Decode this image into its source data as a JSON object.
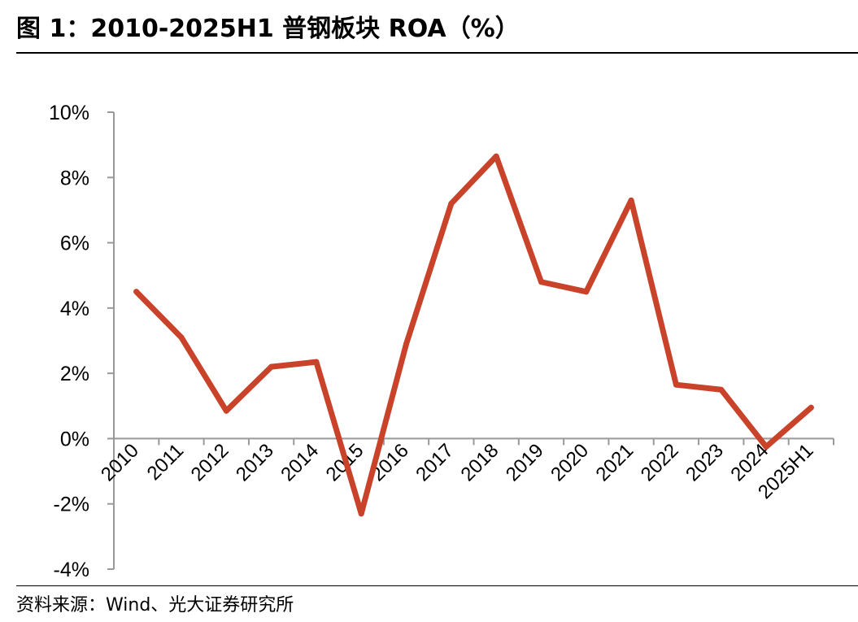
{
  "header": {
    "title": "图 1：2010-2025H1 普钢板块 ROA（%）"
  },
  "footer": {
    "source": "资料来源：Wind、光大证券研究所"
  },
  "chart_data": {
    "type": "line",
    "title": "图 1：2010-2025H1 普钢板块 ROA（%）",
    "xlabel": "",
    "ylabel": "",
    "categories": [
      "2010",
      "2011",
      "2012",
      "2013",
      "2014",
      "2015",
      "2016",
      "2017",
      "2018",
      "2019",
      "2020",
      "2021",
      "2022",
      "2023",
      "2024",
      "2025H1"
    ],
    "series": [
      {
        "values": [
          4.5,
          3.1,
          0.85,
          2.2,
          2.35,
          -2.3,
          2.9,
          7.2,
          8.65,
          4.8,
          4.5,
          7.3,
          1.65,
          1.5,
          -0.25,
          0.95
        ],
        "color": "#C9432A"
      }
    ],
    "ylim": [
      -4,
      10
    ],
    "yticks": [
      -4,
      -2,
      0,
      2,
      4,
      6,
      8,
      10
    ],
    "ytick_labels": [
      "-4%",
      "-2%",
      "0%",
      "2%",
      "4%",
      "6%",
      "8%",
      "10%"
    ],
    "grid": false,
    "legend": "none"
  }
}
